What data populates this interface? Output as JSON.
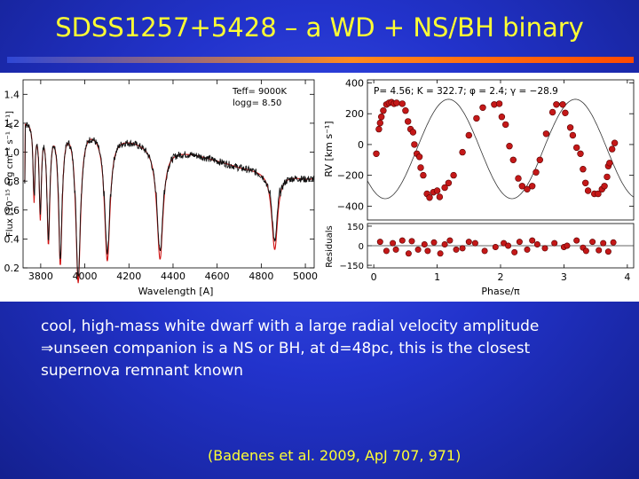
{
  "title": "SDSS1257+5428 – a WD + NS/BH binary",
  "caption": {
    "line1": "cool, high-mass white dwarf with a large radial velocity amplitude",
    "line2": "⇒unseen companion is a NS or BH, at d=48pc, this is the closest",
    "line3": "supernova remnant known"
  },
  "citation": "(Badenes et al. 2009, ApJ 707, 971)",
  "colors": {
    "title": "#ffff33",
    "rule_start": "#2f47d6",
    "rule_end": "#ff4a00",
    "model": "#d01010",
    "points": "#c41818"
  },
  "chart_data": [
    {
      "type": "line",
      "xlabel": "Wavelength [A]",
      "ylabel": "Flux [10⁻¹⁵ erg cm⁻² s⁻¹ A⁻¹]",
      "xlim": [
        3720,
        5040
      ],
      "ylim": [
        0.2,
        1.5
      ],
      "xticks": [
        "3800",
        "4000",
        "4200",
        "4400",
        "4600",
        "4800",
        "5000"
      ],
      "yticks": [
        "0.2",
        "0.4",
        "0.6",
        "0.8",
        "1.0",
        "1.2",
        "1.4"
      ],
      "annotation": {
        "line1": "Teff=  9000K",
        "line2": "logg= 8.50"
      },
      "continuum": [
        [
          3730,
          1.22
        ],
        [
          3800,
          1.25
        ],
        [
          3880,
          1.25
        ],
        [
          3950,
          1.22
        ],
        [
          4020,
          1.19
        ],
        [
          4100,
          1.14
        ],
        [
          4200,
          1.1
        ],
        [
          4340,
          1.04
        ],
        [
          4500,
          0.99
        ],
        [
          4700,
          0.9
        ],
        [
          4860,
          0.86
        ],
        [
          4900,
          0.85
        ],
        [
          5000,
          0.82
        ]
      ],
      "lines": [
        {
          "center": 3770,
          "depth": 0.45,
          "width": 5
        },
        {
          "center": 3798,
          "depth": 0.55,
          "width": 6
        },
        {
          "center": 3835,
          "depth": 0.7,
          "width": 8
        },
        {
          "center": 3889,
          "depth": 0.82,
          "width": 10
        },
        {
          "center": 3970,
          "depth": 0.92,
          "width": 13
        },
        {
          "center": 4102,
          "depth": 0.78,
          "width": 15
        },
        {
          "center": 4341,
          "depth": 0.75,
          "width": 17
        },
        {
          "center": 4861,
          "depth": 0.62,
          "width": 16
        }
      ]
    },
    {
      "type": "scatter",
      "xlabel": "Phase/π",
      "ylabel": "RV [km s⁻¹]",
      "xlim": [
        -0.1,
        4.1
      ],
      "ylim": [
        -490,
        420
      ],
      "xticks": [
        "0",
        "1",
        "2",
        "3",
        "4"
      ],
      "yticks": [
        "400",
        "200",
        "0",
        "−200",
        "−400"
      ],
      "annotation": "P= 4.56; K = 322.7; φ = 2.4; γ = −28.9",
      "model": {
        "amplitude": 322.7,
        "gamma": -28.9,
        "phase0": 0.0
      },
      "points": [
        [
          0.04,
          -60
        ],
        [
          0.08,
          100
        ],
        [
          0.1,
          140
        ],
        [
          0.12,
          180
        ],
        [
          0.15,
          220
        ],
        [
          0.2,
          260
        ],
        [
          0.24,
          270
        ],
        [
          0.28,
          275
        ],
        [
          0.32,
          265
        ],
        [
          0.36,
          270
        ],
        [
          0.45,
          265
        ],
        [
          0.5,
          220
        ],
        [
          0.54,
          150
        ],
        [
          0.58,
          100
        ],
        [
          0.62,
          80
        ],
        [
          0.64,
          0
        ],
        [
          0.68,
          -60
        ],
        [
          0.72,
          -80
        ],
        [
          0.74,
          -150
        ],
        [
          0.78,
          -200
        ],
        [
          0.84,
          -320
        ],
        [
          0.88,
          -345
        ],
        [
          0.94,
          -310
        ],
        [
          1.0,
          -300
        ],
        [
          1.04,
          -340
        ],
        [
          1.12,
          -280
        ],
        [
          1.18,
          -250
        ],
        [
          1.26,
          -200
        ],
        [
          1.4,
          -50
        ],
        [
          1.5,
          60
        ],
        [
          1.62,
          170
        ],
        [
          1.72,
          240
        ],
        [
          1.9,
          260
        ],
        [
          1.98,
          265
        ],
        [
          2.02,
          180
        ],
        [
          2.08,
          130
        ],
        [
          2.14,
          -10
        ],
        [
          2.2,
          -100
        ],
        [
          2.28,
          -220
        ],
        [
          2.34,
          -270
        ],
        [
          2.42,
          -290
        ],
        [
          2.5,
          -270
        ],
        [
          2.56,
          -180
        ],
        [
          2.62,
          -100
        ],
        [
          2.72,
          70
        ],
        [
          2.82,
          210
        ],
        [
          2.88,
          260
        ],
        [
          2.98,
          260
        ],
        [
          3.02,
          205
        ],
        [
          3.1,
          110
        ],
        [
          3.14,
          60
        ],
        [
          3.2,
          -20
        ],
        [
          3.26,
          -60
        ],
        [
          3.3,
          -160
        ],
        [
          3.34,
          -250
        ],
        [
          3.38,
          -300
        ],
        [
          3.48,
          -320
        ],
        [
          3.54,
          -320
        ],
        [
          3.6,
          -290
        ],
        [
          3.64,
          -270
        ],
        [
          3.68,
          -210
        ],
        [
          3.7,
          -140
        ],
        [
          3.72,
          -120
        ],
        [
          3.76,
          -30
        ],
        [
          3.8,
          10
        ]
      ],
      "residuals": {
        "ylabel": "Residuals",
        "ylim": [
          -170,
          170
        ],
        "yticks": [
          "150",
          "0",
          "−150"
        ],
        "values": [
          [
            0.1,
            30
          ],
          [
            0.2,
            -40
          ],
          [
            0.3,
            20
          ],
          [
            0.35,
            -30
          ],
          [
            0.45,
            40
          ],
          [
            0.55,
            -60
          ],
          [
            0.6,
            35
          ],
          [
            0.7,
            -30
          ],
          [
            0.8,
            10
          ],
          [
            0.85,
            -40
          ],
          [
            0.95,
            25
          ],
          [
            1.05,
            -60
          ],
          [
            1.12,
            10
          ],
          [
            1.2,
            40
          ],
          [
            1.3,
            -30
          ],
          [
            1.4,
            -20
          ],
          [
            1.5,
            30
          ],
          [
            1.6,
            20
          ],
          [
            1.75,
            -40
          ],
          [
            1.92,
            -10
          ],
          [
            2.05,
            20
          ],
          [
            2.12,
            0
          ],
          [
            2.22,
            -50
          ],
          [
            2.3,
            30
          ],
          [
            2.42,
            -30
          ],
          [
            2.5,
            40
          ],
          [
            2.58,
            10
          ],
          [
            2.7,
            -20
          ],
          [
            2.85,
            20
          ],
          [
            3.0,
            -10
          ],
          [
            3.05,
            0
          ],
          [
            3.2,
            40
          ],
          [
            3.3,
            -15
          ],
          [
            3.35,
            -40
          ],
          [
            3.45,
            30
          ],
          [
            3.55,
            -35
          ],
          [
            3.62,
            20
          ],
          [
            3.7,
            -45
          ],
          [
            3.78,
            25
          ]
        ]
      }
    }
  ]
}
